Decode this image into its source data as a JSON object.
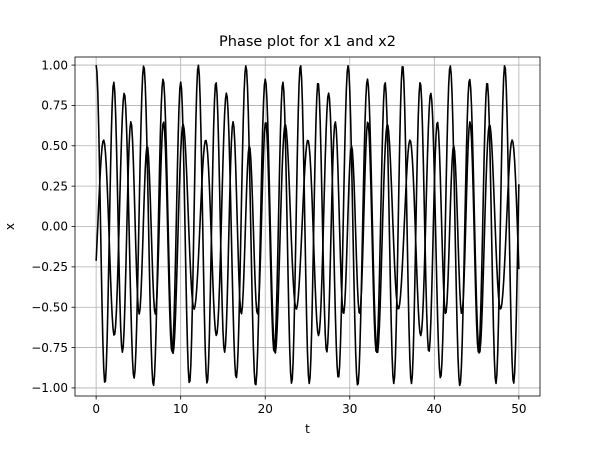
{
  "chart_data": {
    "type": "line",
    "title": "Phase plot for x1 and x2",
    "xlabel": "t",
    "ylabel": "x",
    "xlim": [
      -2.5,
      52.5
    ],
    "ylim": [
      -1.05,
      1.05
    ],
    "grid": true,
    "x_ticks": [
      0,
      10,
      20,
      30,
      40,
      50
    ],
    "x_tick_labels": [
      "0",
      "10",
      "20",
      "30",
      "40",
      "50"
    ],
    "y_ticks": [
      -1.0,
      -0.75,
      -0.5,
      -0.25,
      0.0,
      0.25,
      0.5,
      0.75,
      1.0
    ],
    "y_tick_labels": [
      "−1.00",
      "−0.75",
      "−0.50",
      "−0.25",
      "0.00",
      "0.25",
      "0.50",
      "0.75",
      "1.00"
    ],
    "series": [
      {
        "color": "#000000",
        "function": "0.25*cos(2.6*t) + 0.75*cos(3.12*t)",
        "t_range": [
          0,
          50
        ],
        "t_step": 0.1
      },
      {
        "color": "#000000",
        "function": "0.75*sin(2.6*t - 0.44) - 0.25*sin(3.12*t - 0.44)",
        "t_range": [
          0,
          50
        ],
        "t_step": 0.1
      }
    ]
  }
}
